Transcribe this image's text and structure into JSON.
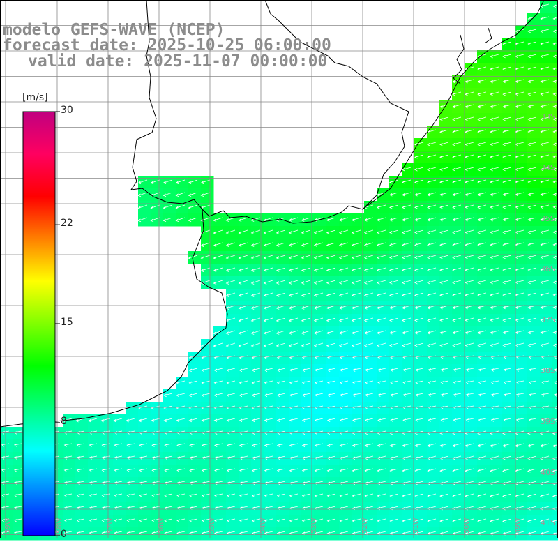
{
  "title": {
    "line1": "modelo GEFS-WAVE (NCEP)",
    "line2": "forecast date: 2025-10-25 06:00:00",
    "line3": "valid date: 2025-11-07 00:00:00"
  },
  "colorbar": {
    "unit": "[m/s]",
    "ticks": [
      {
        "label": "30",
        "value": 30
      },
      {
        "label": "22",
        "value": 22
      },
      {
        "label": "15",
        "value": 15
      },
      {
        "label": "8",
        "value": 8
      },
      {
        "label": "0",
        "value": 0
      }
    ],
    "vmin": 0,
    "vmax": 30,
    "colors": [
      "#0000ff",
      "#0080ff",
      "#00ffff",
      "#00ff80",
      "#00ff00",
      "#80ff00",
      "#ffff00",
      "#ff8000",
      "#ff0000",
      "#ff0060",
      "#c00080"
    ]
  },
  "map": {
    "variable": "wind speed",
    "lat_labels": [
      "33S",
      "34S",
      "35S",
      "36S",
      "37S",
      "38S",
      "39S",
      "40S",
      "41S"
    ],
    "lon_labels": [
      "59W",
      "58W",
      "57W",
      "56W",
      "55W",
      "54W",
      "53W",
      "52W",
      "51W",
      "50W",
      "49W"
    ],
    "land_color": "#ffffff",
    "grid_color": "#888888"
  }
}
